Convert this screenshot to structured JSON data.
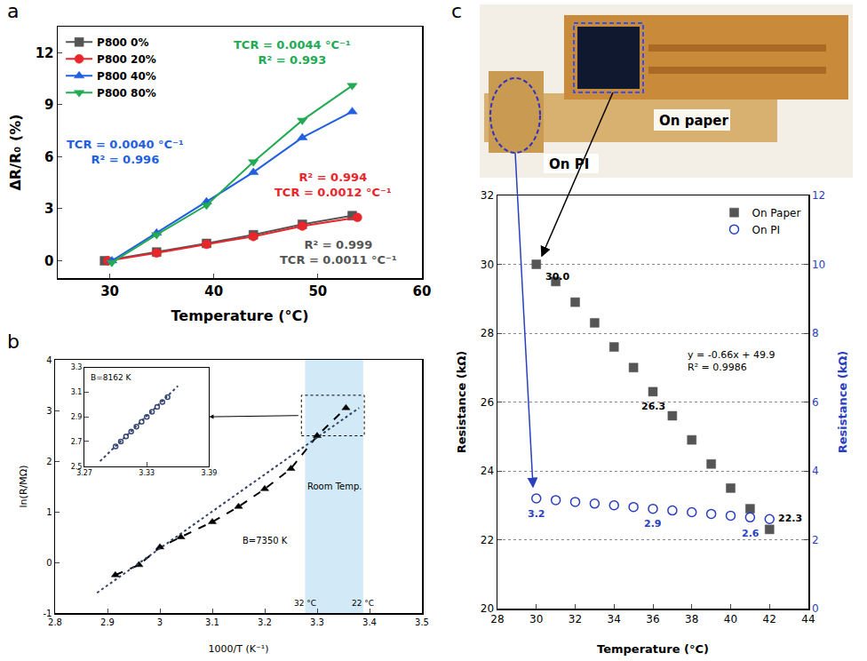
{
  "chart_data": [
    {
      "panel": "a",
      "type": "line",
      "x_label": "Temperature (°C)",
      "y_label": "ΔR/R₀ (%)",
      "xlim": [
        25,
        60
      ],
      "xticks": [
        30,
        40,
        50,
        60
      ],
      "ylim": [
        -1,
        13.5
      ],
      "yticks": [
        0,
        3,
        6,
        9,
        12
      ],
      "grid": false,
      "legend": "top left",
      "series": [
        {
          "name": "P800 0%",
          "color": "#555555",
          "marker": "square",
          "line_style": "solid",
          "x": [
            29.5,
            34.5,
            39.3,
            43.8,
            48.5,
            53.3
          ],
          "values": [
            0,
            0.5,
            1.0,
            1.5,
            2.1,
            2.6
          ]
        },
        {
          "name": "P800 20%",
          "color": "#e8262b",
          "marker": "circle",
          "line_style": "solid",
          "x": [
            29.8,
            34.5,
            39.3,
            43.8,
            48.5,
            53.8
          ],
          "values": [
            0,
            0.45,
            0.95,
            1.4,
            2.0,
            2.5
          ]
        },
        {
          "name": "P800 40%",
          "color": "#1f5fe0",
          "marker": "triangle-up",
          "line_style": "solid",
          "x": [
            30.2,
            34.5,
            39.3,
            43.8,
            48.5,
            53.3
          ],
          "values": [
            0,
            1.6,
            3.4,
            5.1,
            7.1,
            8.6
          ]
        },
        {
          "name": "P800 80%",
          "color": "#22aa55",
          "marker": "triangle-down",
          "line_style": "solid",
          "x": [
            30.2,
            34.5,
            39.3,
            43.8,
            48.5,
            53.3
          ],
          "values": [
            -0.1,
            1.5,
            3.2,
            5.7,
            8.1,
            10.1
          ]
        }
      ],
      "annotations": [
        {
          "text": [
            "TCR = 0.0044 °C⁻¹",
            "R² = 0.993"
          ],
          "color": "#22aa55"
        },
        {
          "text": [
            "TCR = 0.0040 °C⁻¹",
            "R² = 0.996"
          ],
          "color": "#1f5fe0"
        },
        {
          "text": [
            "R² = 0.994",
            "TCR = 0.0012 °C⁻¹"
          ],
          "color": "#e8262b"
        },
        {
          "text": [
            "R² = 0.999",
            "TCR = 0.0011 °C⁻¹"
          ],
          "color": "#555555"
        }
      ]
    },
    {
      "panel": "b",
      "type": "scatter",
      "x_label": "1000/T (K⁻¹)",
      "y_label": "ln(R/MΩ)",
      "xlim": [
        2.8,
        3.5
      ],
      "xticks": [
        2.8,
        2.9,
        3,
        3.1,
        3.2,
        3.3,
        3.4,
        3.5
      ],
      "ylim": [
        -1,
        4
      ],
      "yticks": [
        -1,
        0,
        1,
        2,
        3,
        4
      ],
      "grid": false,
      "series": [
        {
          "color": "#000000",
          "marker": "triangle-up",
          "line_style": "dash",
          "x": [
            2.915,
            2.96,
            3.0,
            3.04,
            3.1,
            3.15,
            3.2,
            3.25,
            3.3,
            3.355
          ],
          "values": [
            -0.25,
            -0.05,
            0.3,
            0.5,
            0.8,
            1.1,
            1.45,
            1.85,
            2.5,
            3.05
          ]
        },
        {
          "color": "#334466",
          "marker": "none",
          "line_style": "dot",
          "x": [
            2.88,
            3.38
          ],
          "values": [
            -0.6,
            3.05
          ]
        }
      ],
      "annotations": [
        {
          "text": "B=7350 K"
        }
      ],
      "band": {
        "x": [
          3.277,
          3.388
        ],
        "label": "Room Temp.",
        "start_label": "32 °C",
        "end_label": "22 °C"
      }
    },
    {
      "type": "scatter",
      "xlim": [
        3.27,
        3.39
      ],
      "xticks": [
        3.27,
        3.33,
        3.39
      ],
      "ylim": [
        2.5,
        3.3
      ],
      "yticks": [
        2.5,
        2.7,
        2.9,
        3.1,
        3.3
      ],
      "grid": false,
      "series": [
        {
          "color": "#3a4a7a",
          "marker": "circle-open",
          "line_style": "none",
          "x": [
            3.3,
            3.305,
            3.31,
            3.315,
            3.32,
            3.325,
            3.33,
            3.335,
            3.34,
            3.345,
            3.35
          ],
          "values": [
            2.66,
            2.7,
            2.74,
            2.78,
            2.82,
            2.86,
            2.9,
            2.94,
            2.98,
            3.02,
            3.06
          ]
        },
        {
          "color": "#334466",
          "marker": "none",
          "line_style": "dot",
          "x": [
            3.285,
            3.36
          ],
          "values": [
            2.54,
            3.15
          ]
        }
      ],
      "annotations": [
        {
          "text": "B=8162 K"
        }
      ]
    },
    {
      "panel": "c",
      "type": "scatter",
      "x_label": "Temperature (°C)",
      "y_label": "Resistance (kΩ)",
      "y2_label": "Resistance (kΩ)",
      "xlim": [
        28,
        44
      ],
      "xticks": [
        28,
        30,
        32,
        34,
        36,
        38,
        40,
        42,
        44
      ],
      "ylim": [
        20,
        32
      ],
      "yticks": [
        20,
        22,
        24,
        26,
        28,
        30,
        32
      ],
      "y2lim": [
        0,
        12
      ],
      "y2ticks": [
        0,
        2,
        4,
        6,
        8,
        10,
        12
      ],
      "grid": true,
      "legend": "top right",
      "x": [
        30,
        31,
        32,
        33,
        34,
        35,
        36,
        37,
        38,
        39,
        40,
        41,
        42
      ],
      "series": [
        {
          "name": "On Paper",
          "color": "#555555",
          "marker": "square",
          "line_style": "none",
          "values": [
            30.0,
            29.5,
            28.9,
            28.3,
            27.6,
            27.0,
            26.3,
            25.6,
            24.9,
            24.2,
            23.5,
            22.9,
            22.3
          ]
        },
        {
          "name": "On PI",
          "color": "#2a3fbf",
          "marker": "circle-open",
          "line_style": "none",
          "axis": "y2",
          "values": [
            3.2,
            3.15,
            3.1,
            3.05,
            3.0,
            2.95,
            2.9,
            2.85,
            2.8,
            2.75,
            2.7,
            2.65,
            2.6
          ]
        }
      ],
      "annotations": [
        {
          "text": [
            "y = -0.66x + 49.9",
            "R² = 0.9986"
          ]
        }
      ],
      "point_labels": [
        {
          "text": "30.0",
          "x": 30,
          "y": 30.0
        },
        {
          "text": "26.3",
          "x": 36,
          "y": 26.3
        },
        {
          "text": "22.3",
          "x": 42,
          "y": 22.3
        },
        {
          "text": "3.2",
          "x": 30,
          "y": 3.2,
          "axis": "y2"
        },
        {
          "text": "2.9",
          "x": 36,
          "y": 2.9,
          "axis": "y2"
        },
        {
          "text": "2.6",
          "x": 42,
          "y": 2.6,
          "axis": "y2"
        }
      ]
    }
  ],
  "photo": {
    "labels": [
      "On PI",
      "On paper"
    ]
  }
}
